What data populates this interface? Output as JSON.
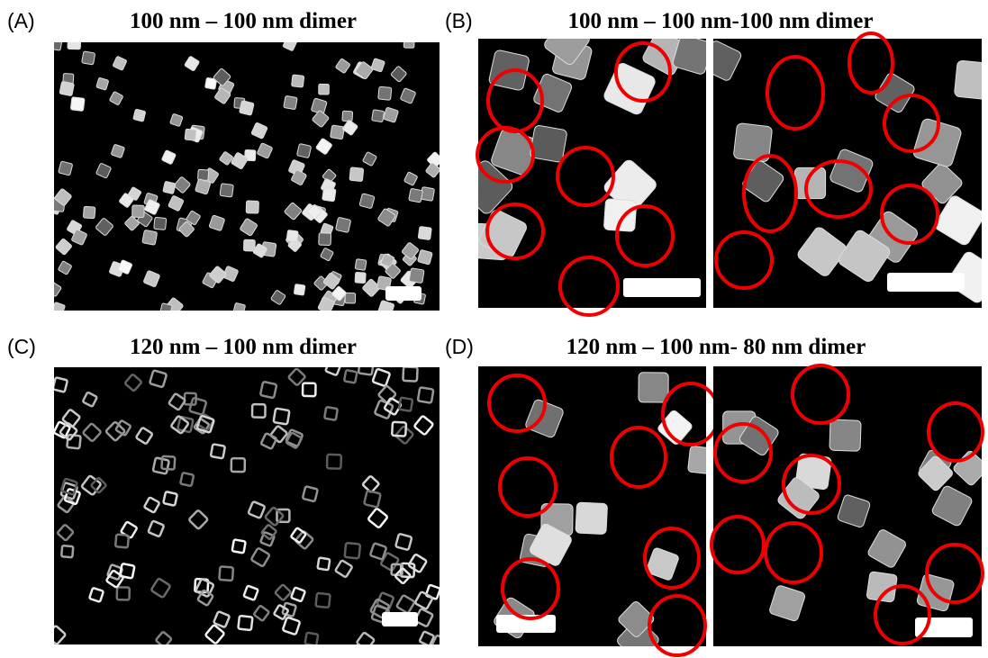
{
  "panels": [
    {
      "label": "(A)",
      "title": "100 nm – 100 nm dimer"
    },
    {
      "label": "(B)",
      "title": "100 nm – 100 nm-100 nm dimer"
    },
    {
      "label": "(C)",
      "title": "120 nm – 100 nm dimer"
    },
    {
      "label": "(D)",
      "title": "120 nm – 100 nm- 80 nm dimer"
    }
  ]
}
